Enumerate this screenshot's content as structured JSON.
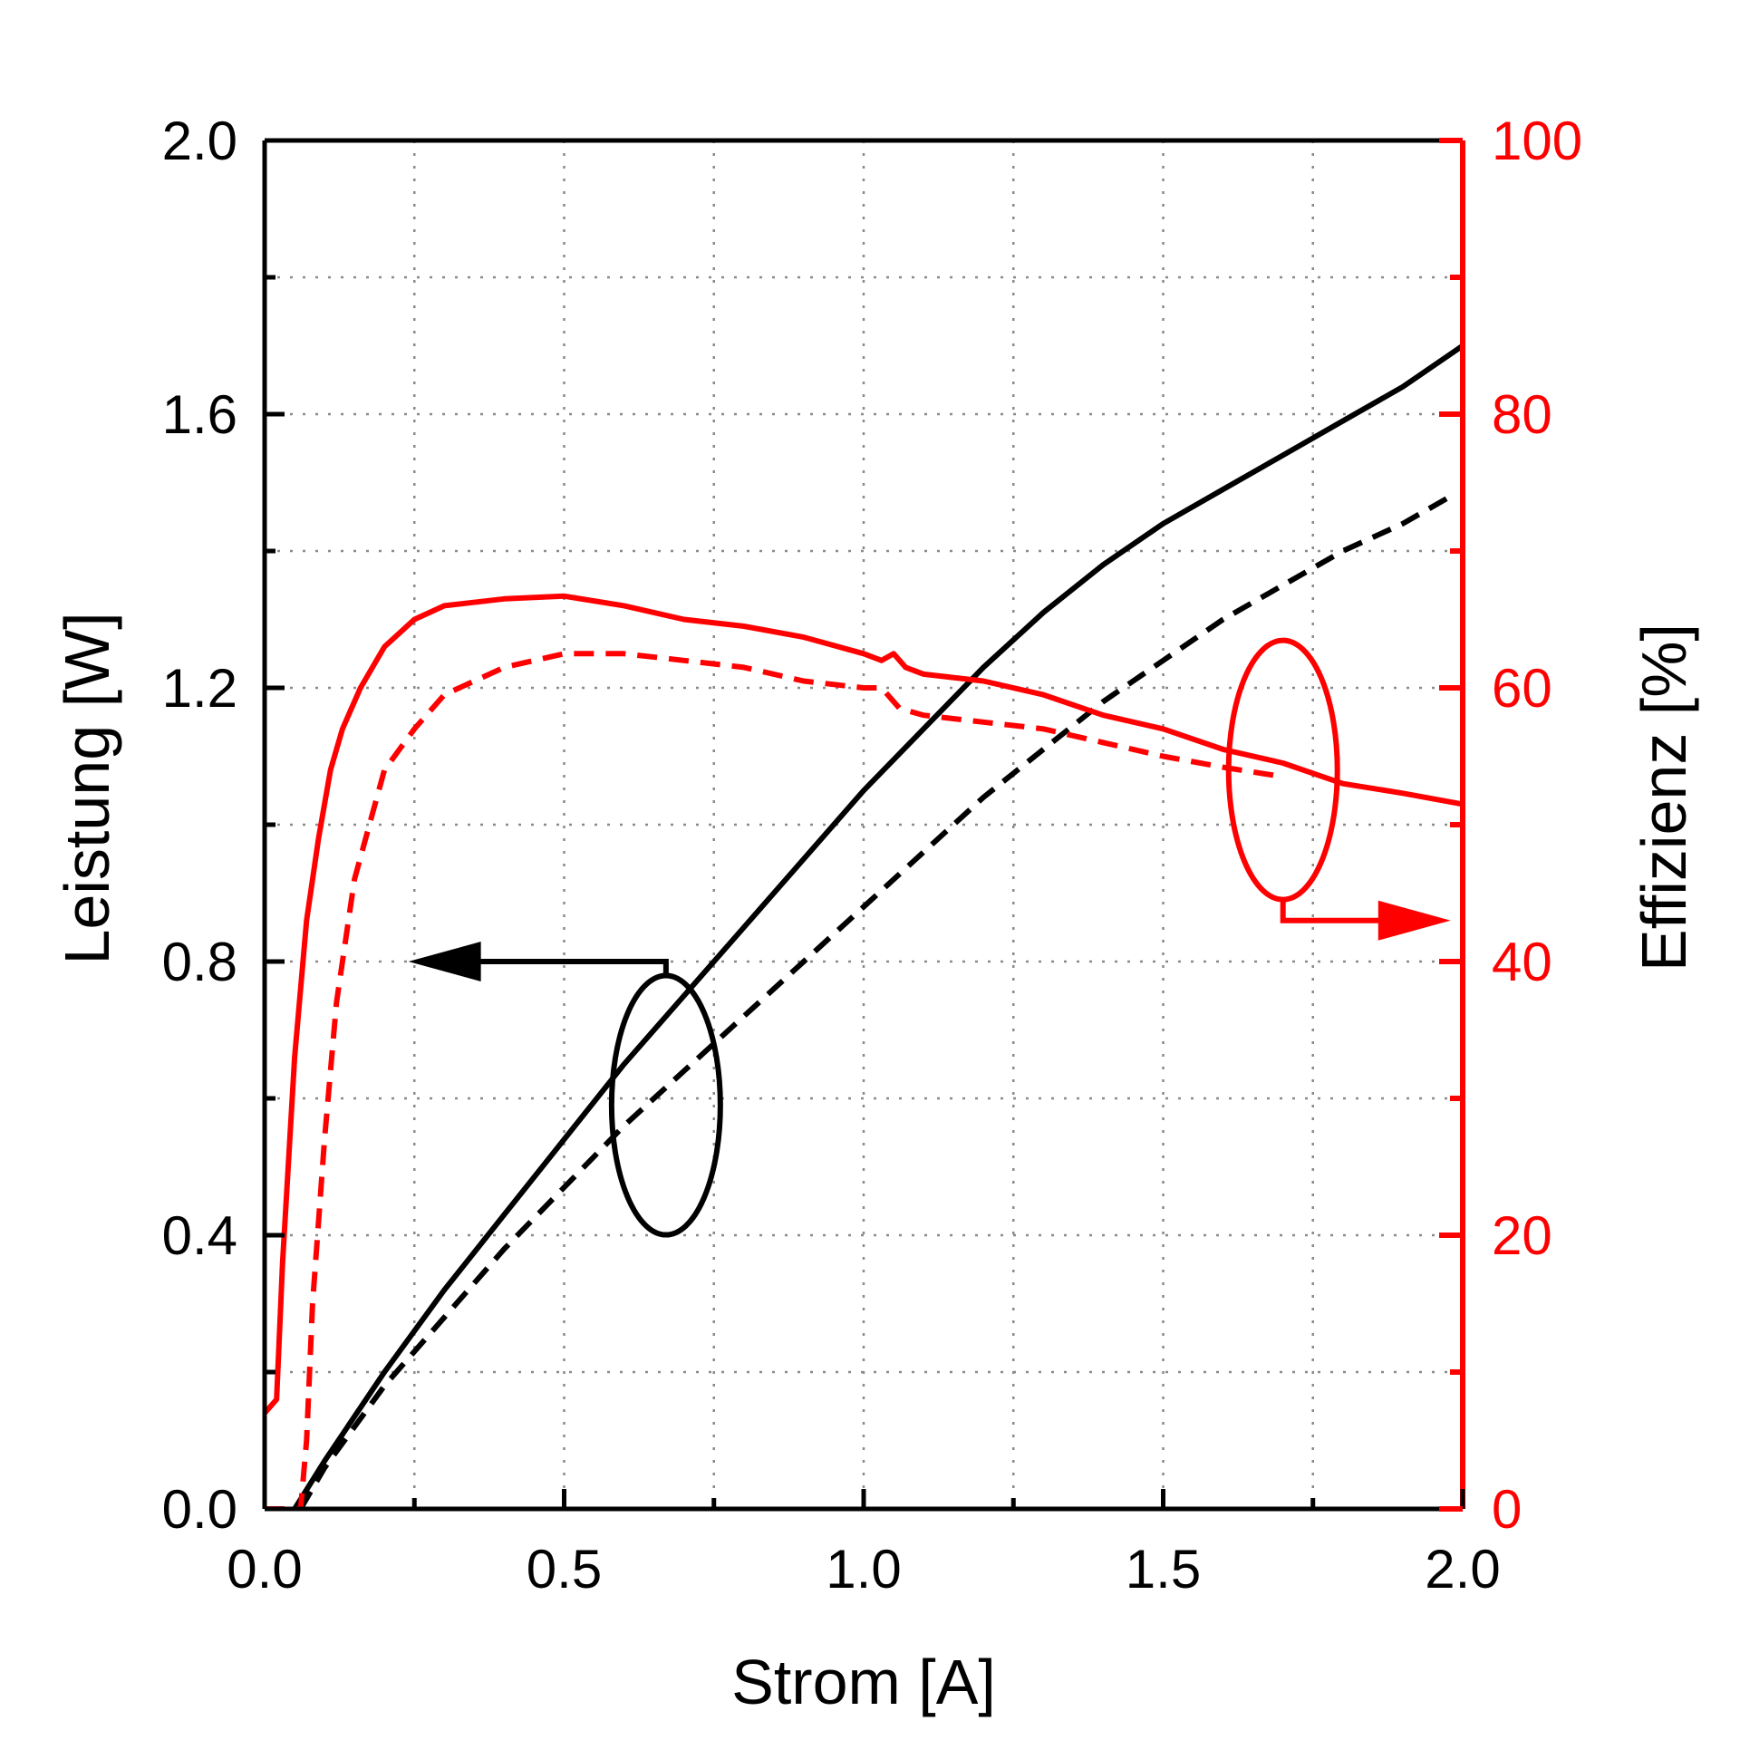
{
  "chart_data": {
    "type": "line",
    "title": "",
    "xlabel": "Strom [A]",
    "ylabel_left": "Leistung [W]",
    "ylabel_right": "Effizienz [%]",
    "xlim": [
      0,
      2.0
    ],
    "ylim_left": [
      0,
      2.0
    ],
    "ylim_right": [
      0,
      100
    ],
    "x_ticks": [
      "0.0",
      "0.5",
      "1.0",
      "1.5",
      "2.0"
    ],
    "y_ticks_left": [
      "0.0",
      "0.4",
      "0.8",
      "1.2",
      "1.6",
      "2.0"
    ],
    "y_ticks_right": [
      "0",
      "20",
      "40",
      "60",
      "80",
      "100"
    ],
    "grid": true,
    "legend": "none",
    "colors": {
      "power": "#000000",
      "efficiency": "#ff0000"
    },
    "series": [
      {
        "axis": "left",
        "color": "#000000",
        "dash": "solid",
        "points": [
          [
            0.05,
            0.0
          ],
          [
            0.1,
            0.07
          ],
          [
            0.2,
            0.2
          ],
          [
            0.3,
            0.32
          ],
          [
            0.4,
            0.43
          ],
          [
            0.5,
            0.54
          ],
          [
            0.6,
            0.65
          ],
          [
            0.7,
            0.75
          ],
          [
            0.8,
            0.85
          ],
          [
            0.9,
            0.95
          ],
          [
            1.0,
            1.05
          ],
          [
            1.1,
            1.14
          ],
          [
            1.2,
            1.23
          ],
          [
            1.3,
            1.31
          ],
          [
            1.4,
            1.38
          ],
          [
            1.5,
            1.44
          ],
          [
            1.6,
            1.49
          ],
          [
            1.7,
            1.54
          ],
          [
            1.8,
            1.59
          ],
          [
            1.9,
            1.64
          ],
          [
            2.0,
            1.7
          ]
        ]
      },
      {
        "axis": "left",
        "color": "#000000",
        "dash": "dashed",
        "points": [
          [
            0.06,
            0.0
          ],
          [
            0.1,
            0.06
          ],
          [
            0.2,
            0.18
          ],
          [
            0.3,
            0.28
          ],
          [
            0.4,
            0.38
          ],
          [
            0.5,
            0.47
          ],
          [
            0.6,
            0.56
          ],
          [
            0.7,
            0.64
          ],
          [
            0.8,
            0.72
          ],
          [
            0.9,
            0.8
          ],
          [
            1.0,
            0.88
          ],
          [
            1.1,
            0.96
          ],
          [
            1.2,
            1.04
          ],
          [
            1.3,
            1.11
          ],
          [
            1.4,
            1.18
          ],
          [
            1.5,
            1.24
          ],
          [
            1.6,
            1.3
          ],
          [
            1.7,
            1.35
          ],
          [
            1.8,
            1.4
          ],
          [
            1.9,
            1.44
          ],
          [
            1.98,
            1.48
          ]
        ]
      },
      {
        "axis": "right",
        "color": "#ff0000",
        "dash": "solid",
        "points": [
          [
            0.0,
            7
          ],
          [
            0.02,
            8
          ],
          [
            0.03,
            18
          ],
          [
            0.05,
            33
          ],
          [
            0.07,
            43
          ],
          [
            0.09,
            49
          ],
          [
            0.11,
            54
          ],
          [
            0.13,
            57
          ],
          [
            0.16,
            60
          ],
          [
            0.2,
            63
          ],
          [
            0.25,
            65
          ],
          [
            0.3,
            66
          ],
          [
            0.4,
            66.5
          ],
          [
            0.5,
            66.7
          ],
          [
            0.6,
            66
          ],
          [
            0.7,
            65
          ],
          [
            0.8,
            64.5
          ],
          [
            0.9,
            63.7
          ],
          [
            1.0,
            62.5
          ],
          [
            1.03,
            62
          ],
          [
            1.05,
            62.5
          ],
          [
            1.07,
            61.5
          ],
          [
            1.1,
            61
          ],
          [
            1.2,
            60.5
          ],
          [
            1.3,
            59.5
          ],
          [
            1.4,
            58
          ],
          [
            1.5,
            57
          ],
          [
            1.6,
            55.5
          ],
          [
            1.7,
            54.5
          ],
          [
            1.8,
            53
          ],
          [
            1.9,
            52.3
          ],
          [
            2.0,
            51.5
          ]
        ]
      },
      {
        "axis": "right",
        "color": "#ff0000",
        "dash": "dashed",
        "points": [
          [
            0.0,
            0
          ],
          [
            0.06,
            0
          ],
          [
            0.07,
            5
          ],
          [
            0.08,
            15
          ],
          [
            0.1,
            27
          ],
          [
            0.12,
            37
          ],
          [
            0.15,
            46
          ],
          [
            0.2,
            54
          ],
          [
            0.25,
            57
          ],
          [
            0.3,
            59.5
          ],
          [
            0.4,
            61.5
          ],
          [
            0.5,
            62.5
          ],
          [
            0.6,
            62.5
          ],
          [
            0.7,
            62
          ],
          [
            0.8,
            61.5
          ],
          [
            0.9,
            60.5
          ],
          [
            1.0,
            60
          ],
          [
            1.03,
            60
          ],
          [
            1.06,
            58.5
          ],
          [
            1.1,
            58
          ],
          [
            1.2,
            57.5
          ],
          [
            1.3,
            57
          ],
          [
            1.4,
            56
          ],
          [
            1.5,
            55
          ],
          [
            1.6,
            54.2
          ],
          [
            1.7,
            53.5
          ]
        ]
      }
    ],
    "annotations": [
      {
        "type": "ellipse-arrow",
        "color": "#000000",
        "ellipse_center": [
          0.67,
          0.59
        ],
        "arrow_to": [
          0.24,
          0.8
        ],
        "points_to": "left axis"
      },
      {
        "type": "ellipse-arrow",
        "color": "#ff0000",
        "ellipse_center": [
          1.7,
          1.08
        ],
        "arrow_to": [
          1.98,
          0.86
        ],
        "points_to": "right axis"
      }
    ]
  }
}
